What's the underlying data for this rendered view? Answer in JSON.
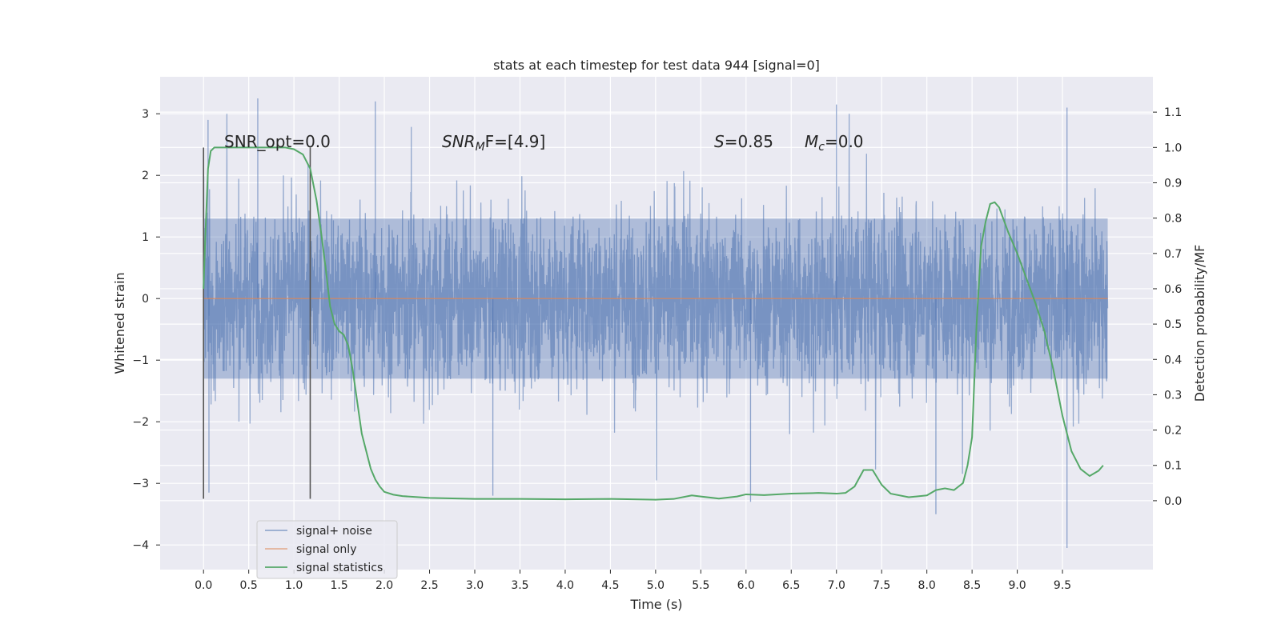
{
  "chart_data": {
    "type": "line",
    "title": "stats at each timestep for test data 944 [signal=0]",
    "xlabel": "Time (s)",
    "ylabel": "Whitened strain",
    "y2label": "Detection probability/MF",
    "xlim": [
      -0.48,
      10.5
    ],
    "ylim": [
      -4.4,
      3.6
    ],
    "y2lim": [
      -0.195,
      1.2
    ],
    "xticks": [
      "0.0",
      "0.5",
      "1.0",
      "1.5",
      "2.0",
      "2.5",
      "3.0",
      "3.5",
      "4.0",
      "4.5",
      "5.0",
      "5.5",
      "6.0",
      "6.5",
      "7.0",
      "7.5",
      "8.0",
      "8.5",
      "9.0",
      "9.5"
    ],
    "yticks": [
      "3",
      "2",
      "1",
      "0",
      "−1",
      "−2",
      "−3",
      "−4"
    ],
    "y2ticks": [
      "1.1",
      "1.0",
      "0.9",
      "0.8",
      "0.7",
      "0.6",
      "0.5",
      "0.4",
      "0.3",
      "0.2",
      "0.1",
      "0.0"
    ],
    "grid": true,
    "legend_position": "lower-left",
    "annotations": {
      "snr_opt": "SNR_opt=0.0",
      "snr_mf_label": "SNR",
      "snr_mf_sub": "M",
      "snr_mf_rest": "F=[4.9]",
      "s_label": "S",
      "s_rest": "=0.85",
      "mc_label": "M",
      "mc_sub": "c",
      "mc_rest": "=0.0"
    },
    "vertical_markers": {
      "x": [
        0.0,
        1.18
      ],
      "ymin": -3.25,
      "ymax": 2.45,
      "color": "#555555"
    },
    "series": [
      {
        "name": "signal+ noise",
        "color": "#4c72b0",
        "style": "dense noise band",
        "x_range": [
          0.0,
          10.0
        ],
        "band_typical": [
          -1.3,
          1.3
        ],
        "peaks_max": [
          3.25,
          3.2,
          3.15,
          3.1,
          2.9
        ],
        "peaks_min": [
          -4.05,
          -3.5,
          -3.3,
          -3.2,
          -3.15
        ]
      },
      {
        "name": "signal only",
        "color": "#dd8452",
        "x": [
          0.0,
          10.0
        ],
        "y": [
          0.0,
          0.0
        ]
      },
      {
        "name": "signal statistics",
        "color": "#55a868",
        "axis": "right",
        "x": [
          0.0,
          0.02,
          0.05,
          0.08,
          0.12,
          0.2,
          0.3,
          0.5,
          0.7,
          0.9,
          1.0,
          1.1,
          1.18,
          1.25,
          1.3,
          1.35,
          1.4,
          1.45,
          1.5,
          1.55,
          1.6,
          1.65,
          1.7,
          1.75,
          1.8,
          1.85,
          1.9,
          1.95,
          2.0,
          2.1,
          2.2,
          2.5,
          3.0,
          3.5,
          4.0,
          4.5,
          5.0,
          5.2,
          5.4,
          5.5,
          5.7,
          5.9,
          6.0,
          6.2,
          6.5,
          6.8,
          7.0,
          7.1,
          7.2,
          7.3,
          7.4,
          7.5,
          7.6,
          7.8,
          8.0,
          8.1,
          8.2,
          8.3,
          8.4,
          8.45,
          8.5,
          8.55,
          8.6,
          8.65,
          8.7,
          8.75,
          8.8,
          8.9,
          9.0,
          9.1,
          9.2,
          9.3,
          9.4,
          9.5,
          9.6,
          9.7,
          9.8,
          9.9,
          9.95
        ],
        "y": [
          0.6,
          0.75,
          0.94,
          0.99,
          1.0,
          1.0,
          1.0,
          1.0,
          1.0,
          1.0,
          0.995,
          0.98,
          0.94,
          0.85,
          0.76,
          0.66,
          0.55,
          0.5,
          0.48,
          0.47,
          0.44,
          0.37,
          0.28,
          0.19,
          0.14,
          0.09,
          0.06,
          0.04,
          0.025,
          0.017,
          0.013,
          0.008,
          0.005,
          0.005,
          0.004,
          0.005,
          0.003,
          0.005,
          0.015,
          0.012,
          0.006,
          0.012,
          0.018,
          0.016,
          0.02,
          0.022,
          0.02,
          0.022,
          0.04,
          0.087,
          0.087,
          0.045,
          0.02,
          0.01,
          0.015,
          0.03,
          0.035,
          0.03,
          0.05,
          0.1,
          0.18,
          0.5,
          0.72,
          0.79,
          0.84,
          0.845,
          0.83,
          0.76,
          0.7,
          0.63,
          0.56,
          0.48,
          0.37,
          0.24,
          0.14,
          0.09,
          0.07,
          0.085,
          0.1
        ]
      }
    ]
  }
}
